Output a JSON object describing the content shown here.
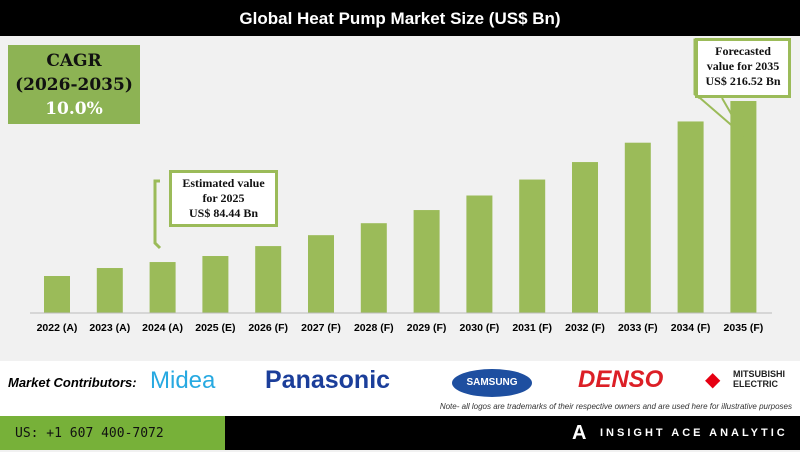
{
  "chart_data": {
    "type": "bar",
    "title": "Global Heat Pump Market Size (US$ Bn)",
    "categories": [
      "2022 (A)",
      "2023 (A)",
      "2024 (A)",
      "2025 (E)",
      "2026 (F)",
      "2027 (F)",
      "2028 (F)",
      "2029 (F)",
      "2030 (F)",
      "2031 (F)",
      "2032 (F)",
      "2033 (F)",
      "2034 (F)",
      "2035 (F)"
    ],
    "values": [
      67.4,
      74.2,
      79.3,
      84.44,
      92.9,
      102.2,
      112.4,
      123.6,
      136.0,
      149.6,
      164.5,
      181.0,
      199.1,
      216.52
    ],
    "grid": false,
    "bar_color": "#9bbb59"
  },
  "cagr": {
    "label": "CAGR",
    "period": "(2026-2035)",
    "value": "10.0%"
  },
  "callouts": {
    "estimated": [
      "Estimated value",
      "for 2025",
      "US$ 84.44 Bn"
    ],
    "forecast": [
      "Forecasted",
      "value for 2035",
      "US$ 216.52 Bn"
    ]
  },
  "contributors": {
    "label": "Market Contributors:",
    "logos": [
      "Midea",
      "Panasonic",
      "SAMSUNG",
      "DENSO",
      "MITSUBISHI",
      "ELECTRIC"
    ],
    "note": "Note- all logos are trademarks of their respective owners and are used here for illustrative purposes"
  },
  "footer": {
    "phone": "US: +1 607 400-7072",
    "brand": "INSIGHT ACE ANALYTIC"
  }
}
